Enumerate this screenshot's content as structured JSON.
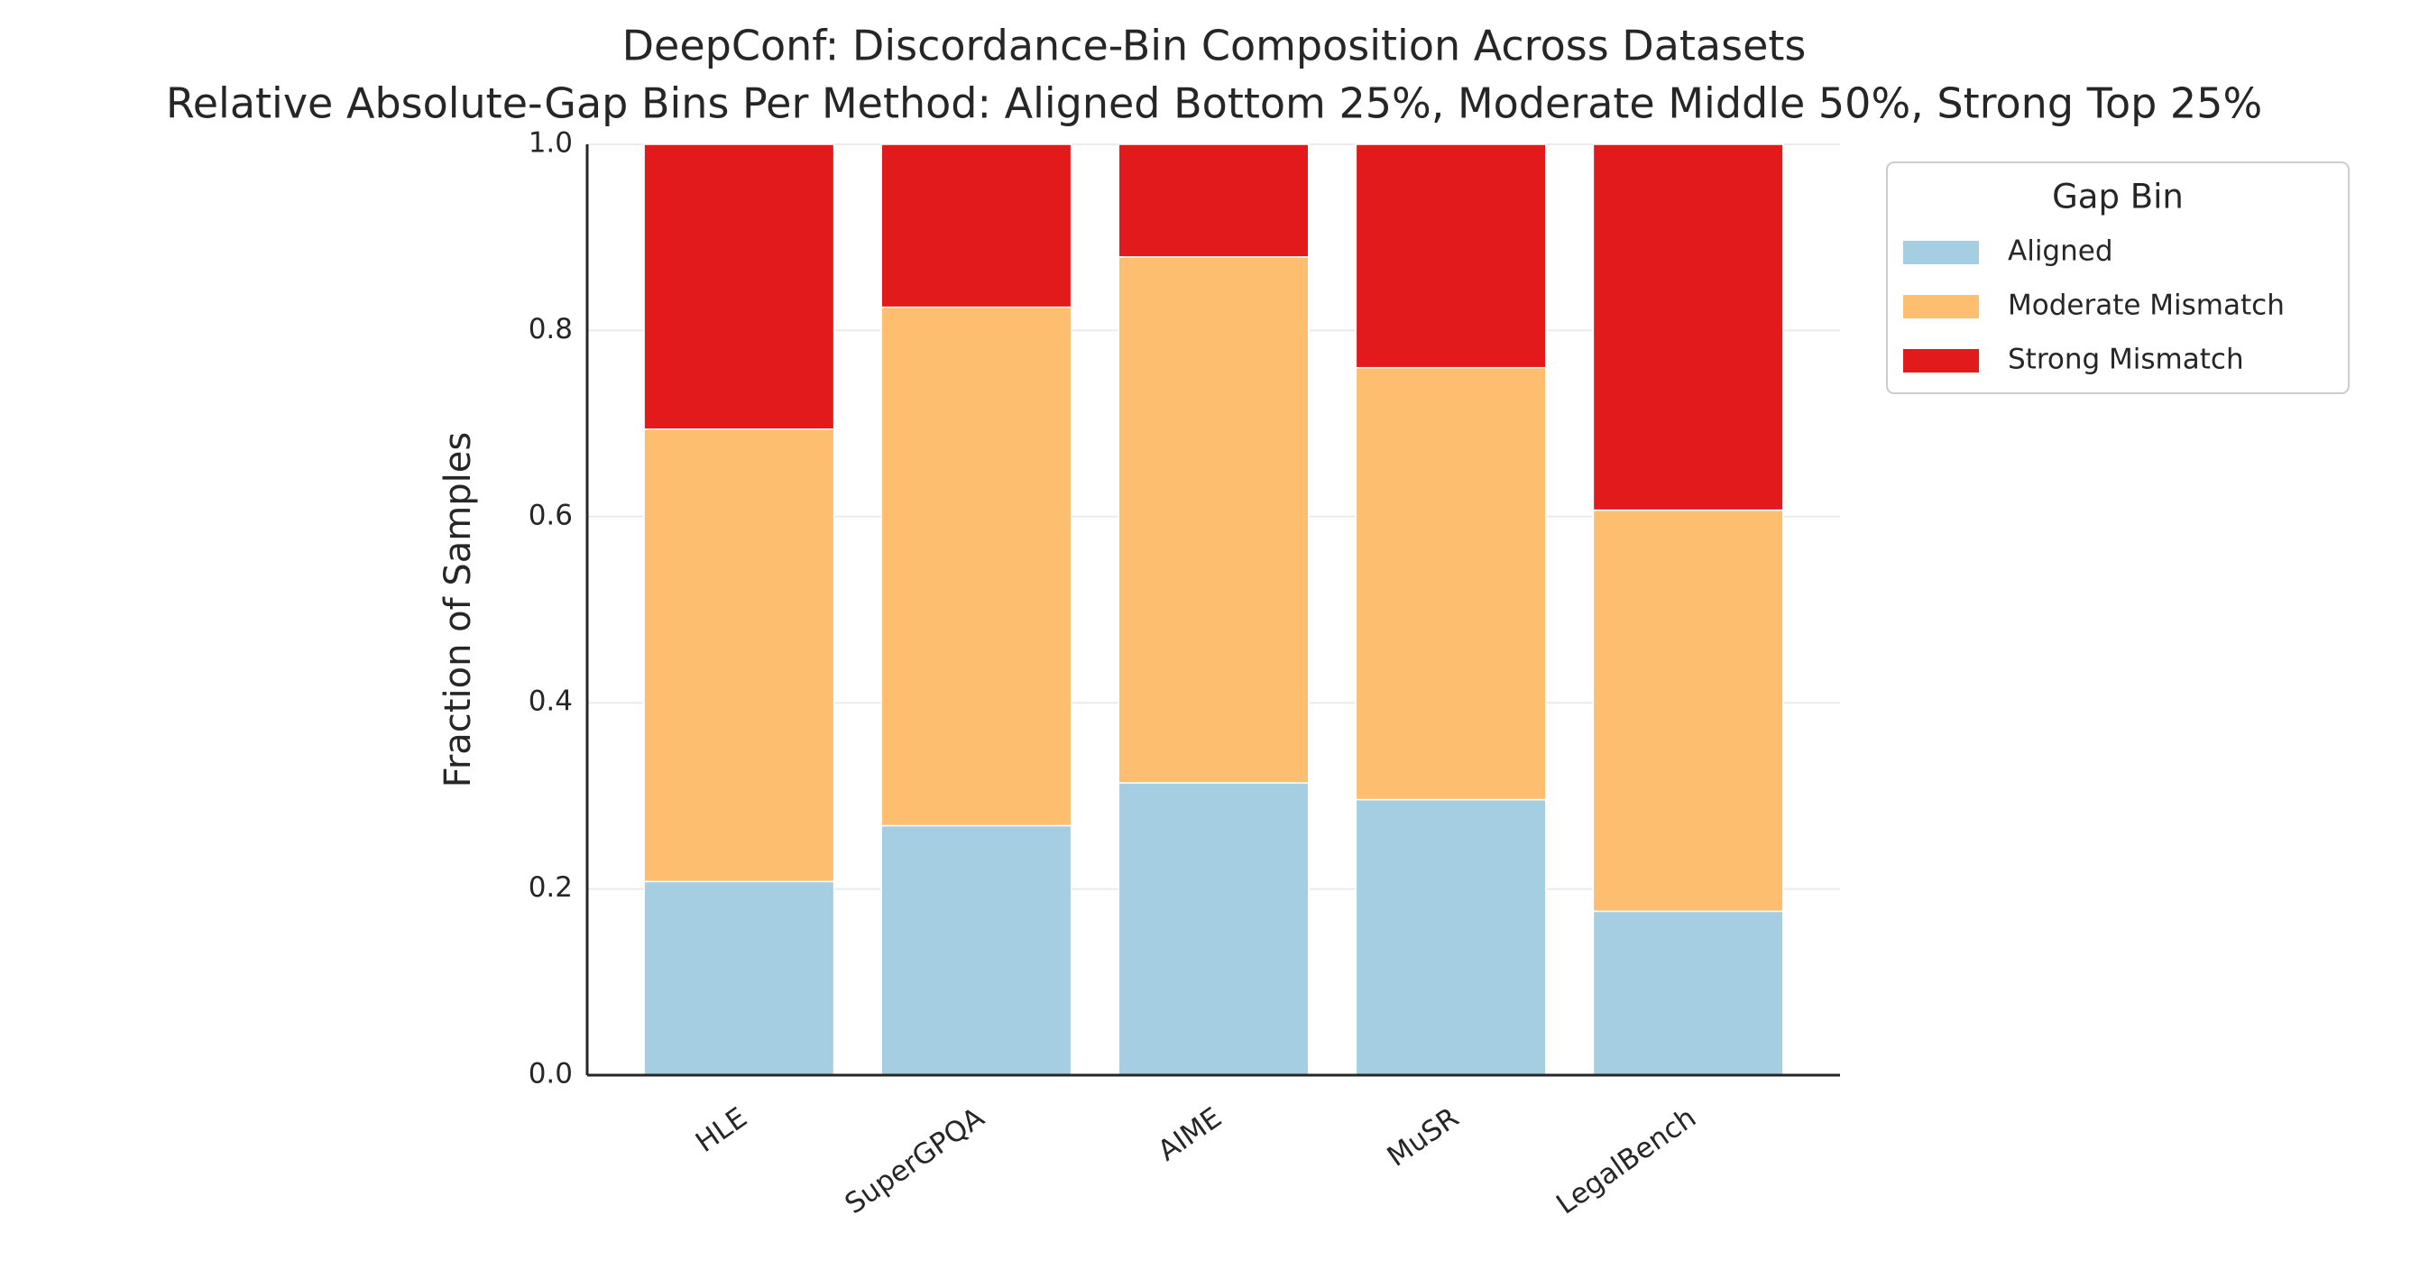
{
  "chart_data": {
    "type": "stacked_bar",
    "title": "DeepConf: Discordance-Bin Composition Across Datasets",
    "subtitle": "Relative Absolute-Gap Bins Per Method: Aligned Bottom 25%, Moderate Middle 50%, Strong Top 25%",
    "y_label": "Fraction of Samples",
    "categories": [
      "HLE",
      "SuperGPQA",
      "AIME",
      "MuSR",
      "LegalBench"
    ],
    "series": [
      {
        "name": "Aligned",
        "color": "#a6cee3",
        "values": [
          0.208,
          0.268,
          0.314,
          0.296,
          0.176
        ]
      },
      {
        "name": "Moderate Mismatch",
        "color": "#fdbf6f",
        "values": [
          0.486,
          0.557,
          0.565,
          0.464,
          0.431
        ]
      },
      {
        "name": "Strong Mismatch",
        "color": "#e31a1c",
        "values": [
          0.306,
          0.175,
          0.121,
          0.24,
          0.393
        ]
      }
    ],
    "ylim": [
      0,
      1
    ],
    "yticks": [
      {
        "value": 0,
        "label": "0.0"
      },
      {
        "value": 0.2,
        "label": "0.2"
      },
      {
        "value": 0.4,
        "label": "0.4"
      },
      {
        "value": 0.6,
        "label": "0.6"
      },
      {
        "value": 0.8,
        "label": "0.8"
      },
      {
        "value": 1,
        "label": "1.0"
      }
    ],
    "grid": true,
    "legend_title": "Gap Bin",
    "legend_position": "outside-upper-right"
  }
}
